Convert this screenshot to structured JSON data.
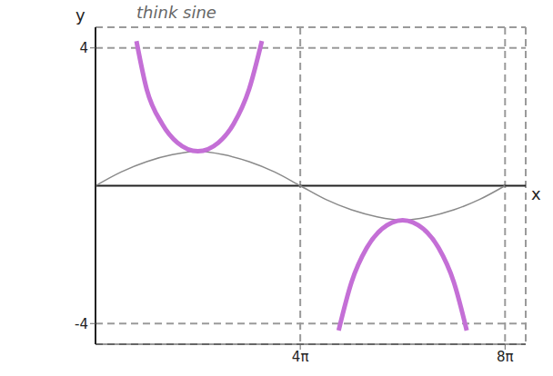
{
  "chart_data": {
    "type": "line",
    "annotation": "think sine",
    "xlabel": "x",
    "ylabel": "y",
    "xlim": [
      0,
      26.4
    ],
    "xticks": [
      {
        "value": 12.566,
        "label": "4π"
      },
      {
        "value": 25.133,
        "label": "8π"
      }
    ],
    "ylim": [
      -4.6,
      4.6
    ],
    "yticks": [
      -4,
      4
    ],
    "grid": true,
    "tick_labels": true,
    "series": [
      {
        "color": "#8a8a8a",
        "x": [
          0,
          1.571,
          3.142,
          4.712,
          6.283,
          7.854,
          9.425,
          10.996,
          12.566,
          14.137,
          15.708,
          17.279,
          18.85,
          20.42,
          21.991,
          23.562,
          25.133
        ],
        "values": [
          0,
          0.4,
          0.7,
          0.9,
          1.0,
          0.9,
          0.7,
          0.4,
          0,
          -0.4,
          -0.7,
          -0.9,
          -1.0,
          -0.9,
          -0.7,
          -0.4,
          0
        ]
      },
      {
        "color": "#c46fd6",
        "x": [
          2.513,
          3.142,
          4.084,
          5.027,
          6.283,
          7.54,
          8.482,
          9.425,
          10.21
        ],
        "values": [
          4.2,
          2.8,
          1.8,
          1.25,
          1.0,
          1.25,
          1.8,
          2.8,
          4.2
        ]
      },
      {
        "color": "#c46fd6",
        "x": [
          14.92,
          15.71,
          16.65,
          17.59,
          18.85,
          20.11,
          21.05,
          21.99,
          22.78
        ],
        "values": [
          -4.2,
          -2.8,
          -1.8,
          -1.25,
          -1.0,
          -1.25,
          -1.8,
          -2.8,
          -4.2
        ]
      }
    ]
  }
}
